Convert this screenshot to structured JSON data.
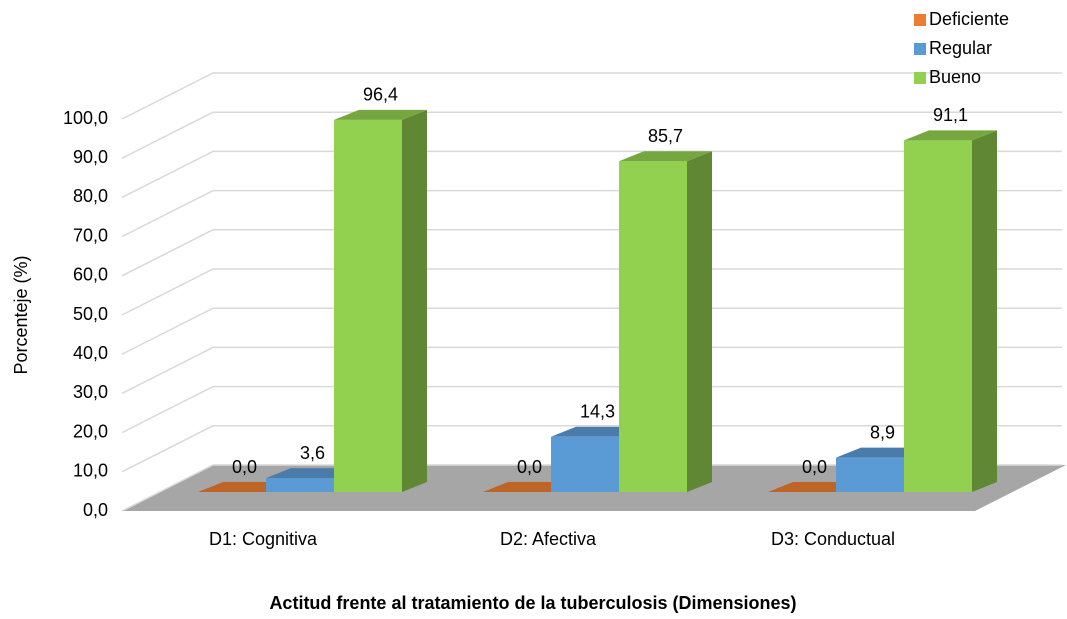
{
  "chart_data": {
    "type": "bar3d",
    "x_label": "Actitud frente al tratamiento de la tuberculosis (Dimensiones)",
    "y_label": "Porcenteje (%)",
    "categories": [
      "D1: Cognitiva",
      "D2: Afectiva",
      "D3: Conductual"
    ],
    "series": [
      {
        "name": "Deficiente",
        "color": "#ed7d31",
        "values": [
          0,
          0,
          0
        ],
        "value_labels": [
          "0,0",
          "0,0",
          "0,0"
        ]
      },
      {
        "name": "Regular",
        "color": "#5b9bd5",
        "values": [
          3.6,
          14.3,
          8.9
        ],
        "value_labels": [
          "3,6",
          "14,3",
          "8,9"
        ]
      },
      {
        "name": "Bueno",
        "color": "#92d050",
        "values": [
          96.4,
          85.7,
          91.1
        ],
        "value_labels": [
          "96,4",
          "85,7",
          "91,1"
        ]
      }
    ],
    "ylim": [
      0,
      100
    ],
    "yticks": [
      {
        "value": 0,
        "label": "0,0"
      },
      {
        "value": 10,
        "label": "10,0"
      },
      {
        "value": 20,
        "label": "20,0"
      },
      {
        "value": 30,
        "label": "30,0"
      },
      {
        "value": 40,
        "label": "40,0"
      },
      {
        "value": 50,
        "label": "50,0"
      },
      {
        "value": 60,
        "label": "60,0"
      },
      {
        "value": 70,
        "label": "70,0"
      },
      {
        "value": 80,
        "label": "80,0"
      },
      {
        "value": 90,
        "label": "90,0"
      },
      {
        "value": 100,
        "label": "100,0"
      }
    ],
    "grid": true,
    "legend": "top-right"
  }
}
